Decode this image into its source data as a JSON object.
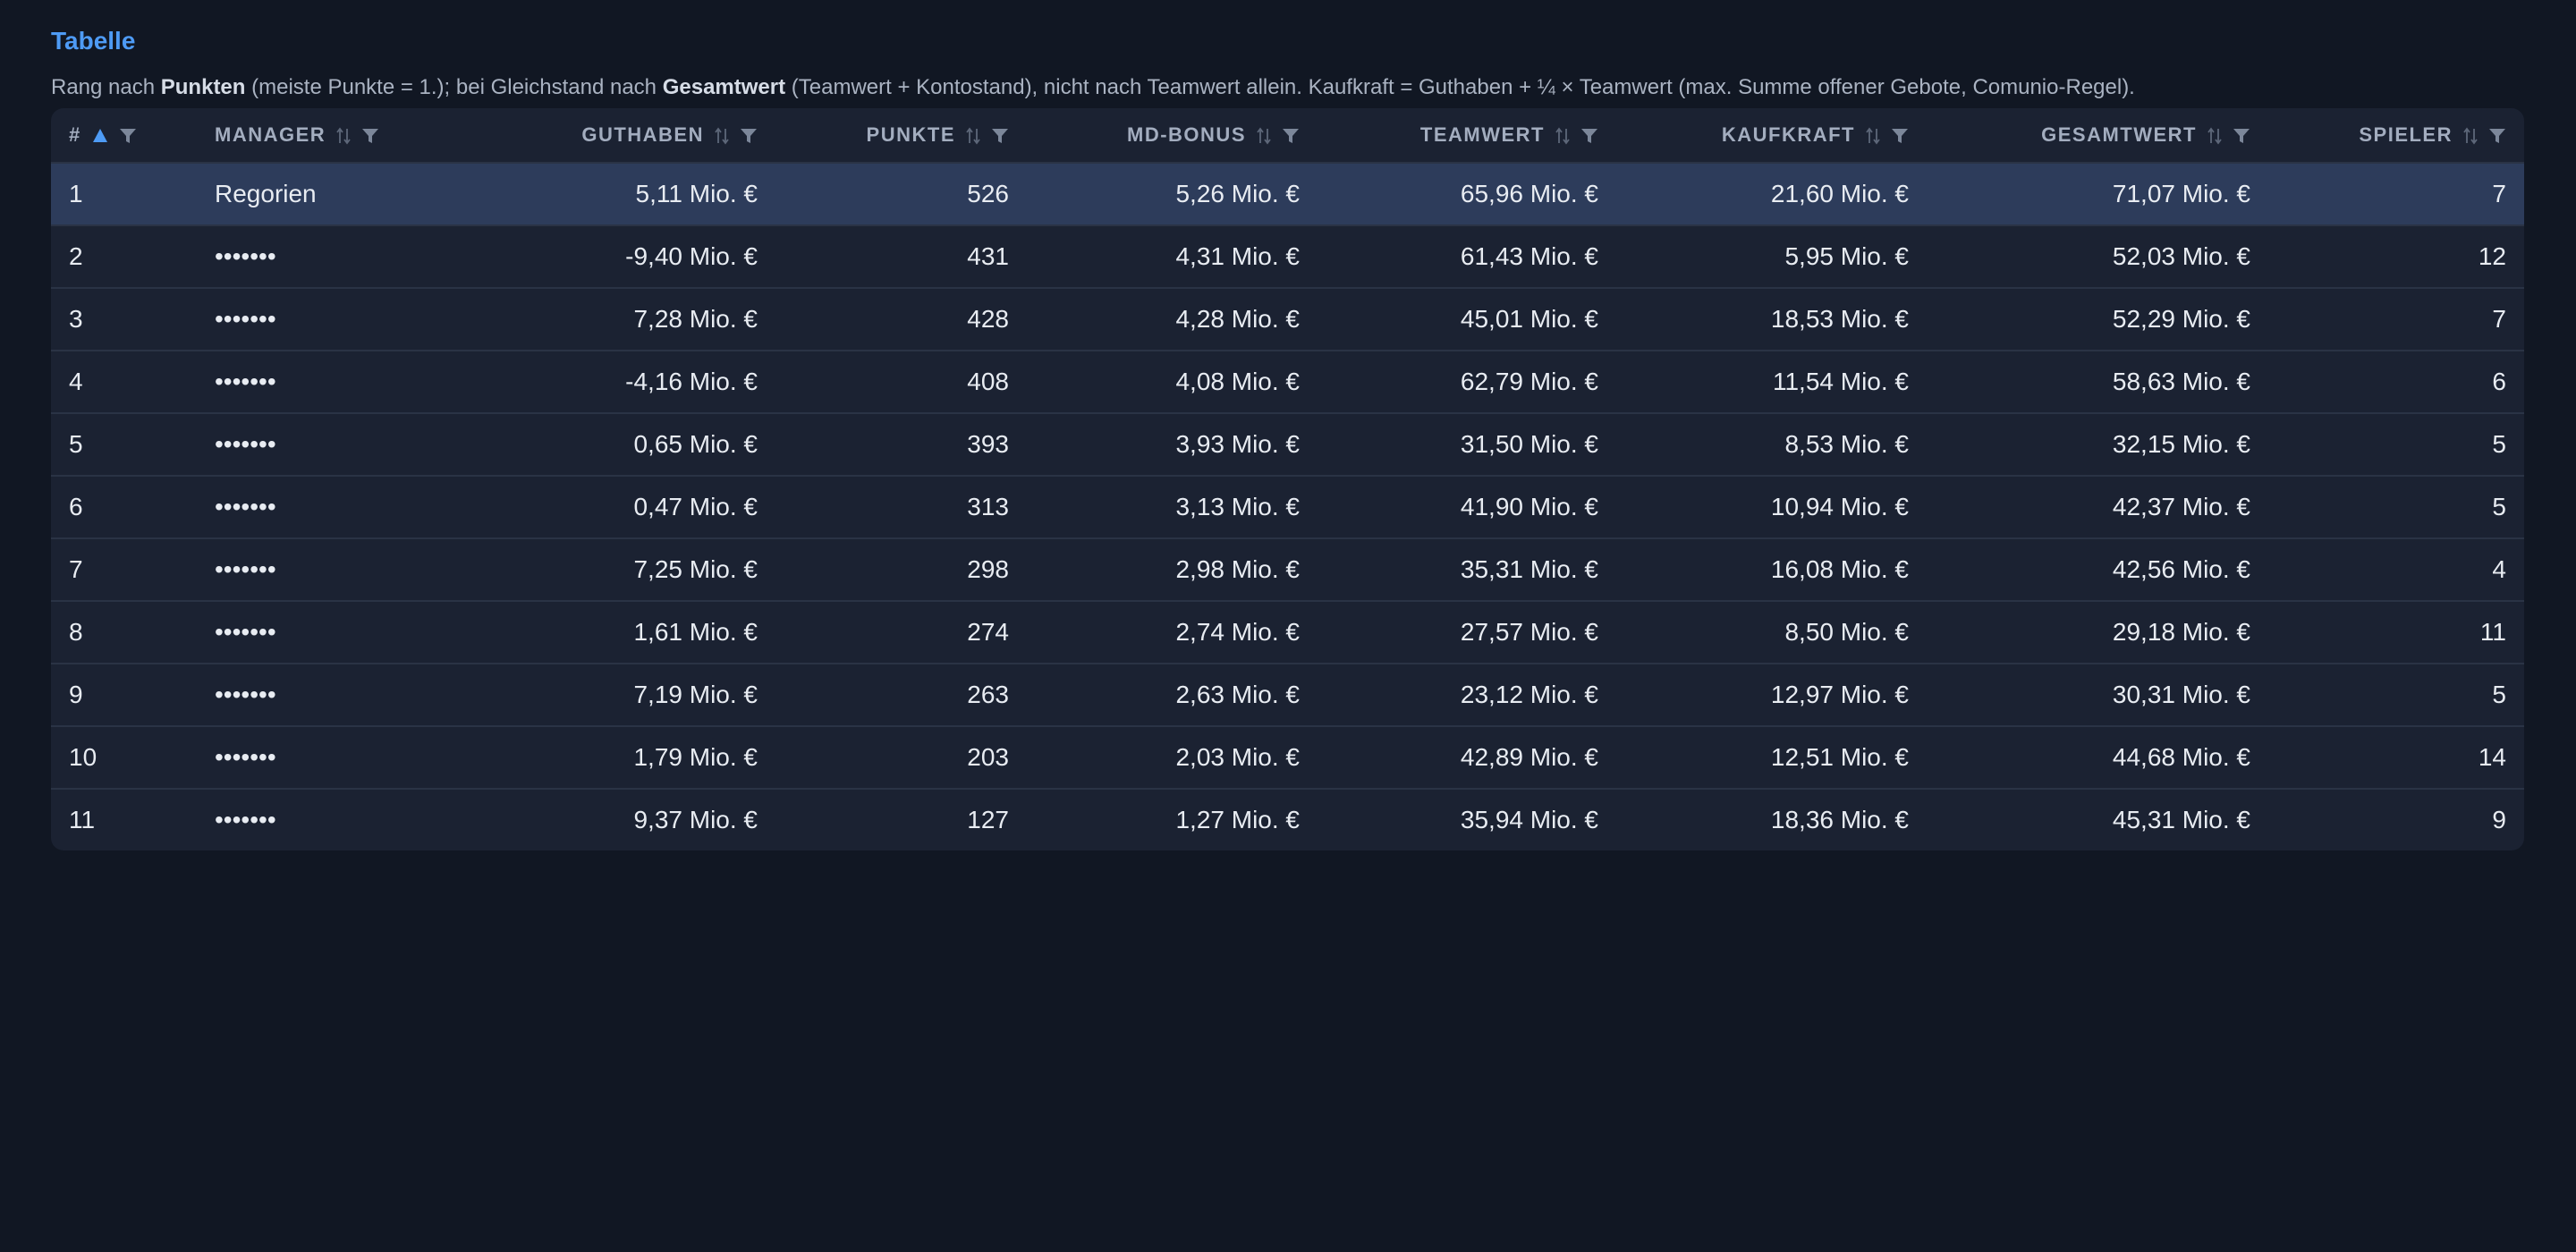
{
  "header": {
    "title": "Tabelle",
    "description": {
      "t1": "Rang nach ",
      "b1": "Punkten",
      "t2": " (meiste Punkte = 1.); bei Gleichstand nach ",
      "b2": "Gesamtwert",
      "t3": " (Teamwert + Kontostand), nicht nach Teamwert allein. Kaufkraft = Guthaben + ¼ × Teamwert (max. Summe offener Gebote, Comunio-Regel)."
    }
  },
  "table": {
    "columns": [
      "#",
      "MANAGER",
      "GUTHABEN",
      "PUNKTE",
      "MD-BONUS",
      "TEAMWERT",
      "KAUFKRAFT",
      "GESAMTWERT",
      "SPIELER"
    ],
    "rows": [
      [
        "1",
        "Regorien",
        "5,11 Mio. €",
        "526",
        "5,26 Mio. €",
        "65,96 Mio. €",
        "21,60 Mio. €",
        "71,07 Mio. €",
        "7"
      ],
      [
        "2",
        "•••••••",
        "-9,40 Mio. €",
        "431",
        "4,31 Mio. €",
        "61,43 Mio. €",
        "5,95 Mio. €",
        "52,03 Mio. €",
        "12"
      ],
      [
        "3",
        "•••••••",
        "7,28 Mio. €",
        "428",
        "4,28 Mio. €",
        "45,01 Mio. €",
        "18,53 Mio. €",
        "52,29 Mio. €",
        "7"
      ],
      [
        "4",
        "•••••••",
        "-4,16 Mio. €",
        "408",
        "4,08 Mio. €",
        "62,79 Mio. €",
        "11,54 Mio. €",
        "58,63 Mio. €",
        "6"
      ],
      [
        "5",
        "•••••••",
        "0,65 Mio. €",
        "393",
        "3,93 Mio. €",
        "31,50 Mio. €",
        "8,53 Mio. €",
        "32,15 Mio. €",
        "5"
      ],
      [
        "6",
        "•••••••",
        "0,47 Mio. €",
        "313",
        "3,13 Mio. €",
        "41,90 Mio. €",
        "10,94 Mio. €",
        "42,37 Mio. €",
        "5"
      ],
      [
        "7",
        "•••••••",
        "7,25 Mio. €",
        "298",
        "2,98 Mio. €",
        "35,31 Mio. €",
        "16,08 Mio. €",
        "42,56 Mio. €",
        "4"
      ],
      [
        "8",
        "•••••••",
        "1,61 Mio. €",
        "274",
        "2,74 Mio. €",
        "27,57 Mio. €",
        "8,50 Mio. €",
        "29,18 Mio. €",
        "11"
      ],
      [
        "9",
        "•••••••",
        "7,19 Mio. €",
        "263",
        "2,63 Mio. €",
        "23,12 Mio. €",
        "12,97 Mio. €",
        "30,31 Mio. €",
        "5"
      ],
      [
        "10",
        "•••••••",
        "1,79 Mio. €",
        "203",
        "2,03 Mio. €",
        "42,89 Mio. €",
        "12,51 Mio. €",
        "44,68 Mio. €",
        "14"
      ],
      [
        "11",
        "•••••••",
        "9,37 Mio. €",
        "127",
        "1,27 Mio. €",
        "35,94 Mio. €",
        "18,36 Mio. €",
        "45,31 Mio. €",
        "9"
      ]
    ]
  }
}
